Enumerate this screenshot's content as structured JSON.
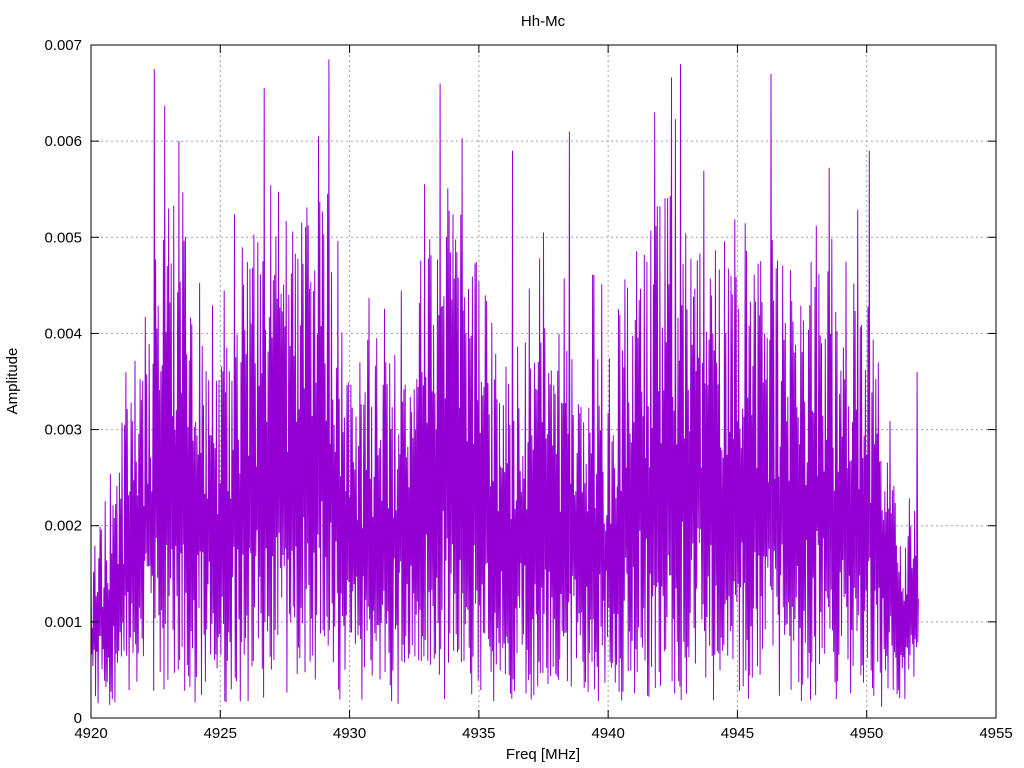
{
  "chart_data": {
    "type": "line",
    "title": "Hh-Mc",
    "xlabel": "Freq [MHz]",
    "ylabel": "Amplitude",
    "xlim": [
      4920,
      4955
    ],
    "ylim": [
      0,
      0.007
    ],
    "xticks": [
      "4920",
      "4925",
      "4930",
      "4935",
      "4940",
      "4945",
      "4950",
      "4955"
    ],
    "yticks": [
      "0",
      "0.001",
      "0.002",
      "0.003",
      "0.004",
      "0.005",
      "0.006",
      "0.007"
    ],
    "grid": true,
    "legend": "none",
    "series": [
      {
        "color": "#9400d3",
        "x_start": 4920,
        "x_end": 4952,
        "points_per_mhz": 40,
        "envelope_x": [
          4920,
          4921,
          4922,
          4923,
          4924,
          4925,
          4926,
          4927,
          4928,
          4929,
          4930,
          4931,
          4932,
          4933,
          4934,
          4935,
          4936,
          4937,
          4938,
          4939,
          4940,
          4941,
          4942,
          4943,
          4944,
          4945,
          4946,
          4947,
          4948,
          4949,
          4950,
          4951,
          4952
        ],
        "envelope_y": [
          0.0012,
          0.0019,
          0.0028,
          0.0036,
          0.0032,
          0.0025,
          0.0034,
          0.0036,
          0.0034,
          0.0039,
          0.0024,
          0.0027,
          0.0028,
          0.0033,
          0.0038,
          0.0031,
          0.0026,
          0.0028,
          0.0027,
          0.0024,
          0.0026,
          0.0032,
          0.0036,
          0.0037,
          0.0031,
          0.0036,
          0.0033,
          0.0031,
          0.0033,
          0.003,
          0.0031,
          0.0017,
          0.0014
        ],
        "peaks": [
          {
            "x": 4922.45,
            "y": 0.00675
          },
          {
            "x": 4923.4,
            "y": 0.006
          },
          {
            "x": 4926.7,
            "y": 0.00655
          },
          {
            "x": 4929.2,
            "y": 0.00685
          },
          {
            "x": 4933.5,
            "y": 0.0066
          },
          {
            "x": 4936.3,
            "y": 0.0059
          },
          {
            "x": 4938.5,
            "y": 0.0061
          },
          {
            "x": 4941.8,
            "y": 0.0063
          },
          {
            "x": 4942.8,
            "y": 0.0068
          },
          {
            "x": 4946.3,
            "y": 0.0067
          },
          {
            "x": 4950.1,
            "y": 0.0059
          },
          {
            "x": 4951.95,
            "y": 0.0036
          }
        ]
      }
    ]
  }
}
